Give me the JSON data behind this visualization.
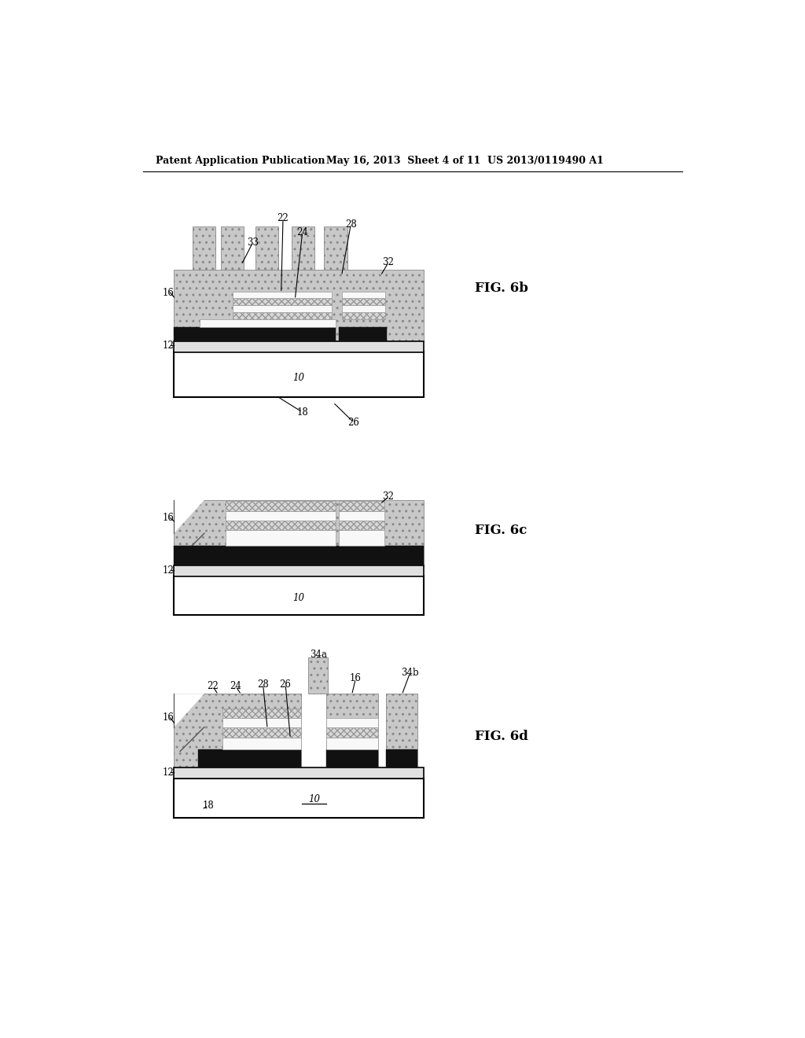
{
  "bg_color": "#ffffff",
  "header_left": "Patent Application Publication",
  "header_mid": "May 16, 2013  Sheet 4 of 11",
  "header_right": "US 2013/0119490 A1",
  "fig6b_label": "FIG. 6b",
  "fig6c_label": "FIG. 6c",
  "fig6d_label": "FIG. 6d",
  "fc_body": "#c8c8c8",
  "fc_black": "#111111",
  "fc_white": "#f8f8f8",
  "fc_xhatch": "#d8d8d8",
  "fc_sub": "#ffffff",
  "fc_l12": "#e0e0e0",
  "hatch_body": "..",
  "hatch_dev": "xxxx"
}
